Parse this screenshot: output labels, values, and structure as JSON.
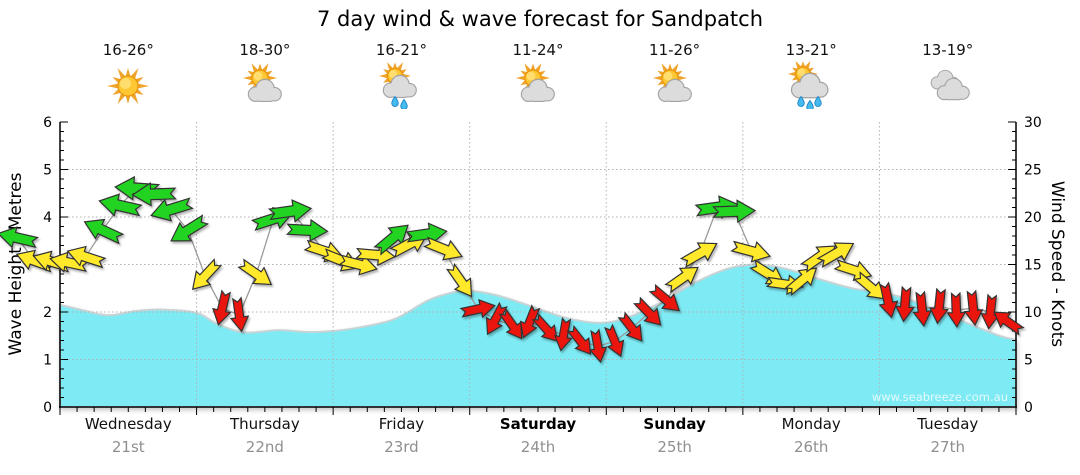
{
  "title": "7 day wind & wave forecast for Sandpatch",
  "watermark": "www.seabreeze.com.au",
  "days": [
    {
      "name": "Wednesday",
      "date": "21st",
      "temp": "16-26°",
      "icon": "sunny",
      "weekend": false
    },
    {
      "name": "Thursday",
      "date": "22nd",
      "temp": "18-30°",
      "icon": "partly-cloudy",
      "weekend": false
    },
    {
      "name": "Friday",
      "date": "23rd",
      "temp": "16-21°",
      "icon": "showers",
      "weekend": false
    },
    {
      "name": "Saturday",
      "date": "24th",
      "temp": "11-24°",
      "icon": "partly-cloudy",
      "weekend": true
    },
    {
      "name": "Sunday",
      "date": "25th",
      "temp": "11-26°",
      "icon": "partly-cloudy",
      "weekend": true
    },
    {
      "name": "Monday",
      "date": "26th",
      "temp": "13-21°",
      "icon": "rain",
      "weekend": false
    },
    {
      "name": "Tuesday",
      "date": "27th",
      "temp": "13-19°",
      "icon": "cloudy",
      "weekend": false
    }
  ],
  "colors": {
    "wave_fill": "#7deaf4",
    "wave_edge": "#c8d3d5",
    "arrow_green": "#22d320",
    "arrow_yellow": "#ffe92b",
    "arrow_red": "#ea1410",
    "arrow_outline": "#333333",
    "grid": "#b2b2b2",
    "axis": "#000000",
    "connector": "#9a9a9a",
    "date_text": "#8f8f8f"
  },
  "chart_data": {
    "type": "area",
    "title": "7 day wind & wave forecast for Sandpatch",
    "grid": true,
    "x_axis": {
      "days": 7,
      "points_per_day": 8
    },
    "y_left": {
      "label": "Wave Height - Metres",
      "min": 0,
      "max": 6,
      "ticks": [
        0,
        1,
        2,
        3,
        4,
        5,
        6
      ],
      "minor_step": 0.2
    },
    "y_right": {
      "label": "Wind Speed - Knots",
      "min": 0,
      "max": 30,
      "ticks": [
        0,
        5,
        10,
        15,
        20,
        25,
        30
      ],
      "minor_step": 1
    },
    "wave_height_m": {
      "x_days": [
        0,
        0.15,
        0.35,
        0.55,
        0.75,
        1.0,
        1.15,
        1.35,
        1.6,
        1.8,
        2.0,
        2.2,
        2.45,
        2.7,
        2.9,
        3.0,
        3.2,
        3.45,
        3.7,
        3.95,
        4.15,
        4.4,
        4.65,
        4.9,
        5.1,
        5.3,
        5.55,
        5.8,
        6.0,
        6.2,
        6.45,
        6.7,
        6.9,
        7.0
      ],
      "values": [
        2.15,
        2.05,
        1.93,
        2.02,
        2.05,
        1.98,
        1.75,
        1.57,
        1.62,
        1.58,
        1.6,
        1.68,
        1.85,
        2.25,
        2.43,
        2.45,
        2.35,
        2.12,
        1.88,
        1.77,
        1.88,
        2.2,
        2.62,
        2.92,
        3.0,
        2.92,
        2.7,
        2.5,
        2.42,
        2.28,
        2.0,
        1.7,
        1.48,
        1.42
      ]
    },
    "wind": {
      "start_day": -0.3125,
      "step_day": 0.125,
      "knots": [
        17.8,
        15.4,
        15.3,
        15.2,
        15.8,
        18.6,
        21.2,
        23.0,
        22.4,
        20.8,
        18.6,
        13.8,
        10.4,
        9.7,
        14.0,
        19.8,
        20.6,
        18.6,
        16.4,
        15.4,
        15.0,
        16.0,
        17.8,
        17.2,
        18.2,
        16.6,
        13.2,
        10.3,
        9.2,
        8.6,
        8.9,
        8.2,
        7.6,
        6.9,
        6.4,
        6.9,
        8.3,
        9.9,
        11.3,
        13.6,
        16.2,
        21.0,
        20.6,
        16.4,
        14.0,
        12.9,
        13.4,
        15.8,
        16.2,
        14.4,
        12.6,
        11.2,
        10.8,
        10.3,
        10.6,
        10.2,
        10.4,
        10.0,
        9.0
      ],
      "dir_deg": [
        193,
        200,
        197,
        192,
        198,
        205,
        193,
        184,
        178,
        163,
        148,
        133,
        103,
        82,
        35,
        342,
        352,
        3,
        18,
        22,
        14,
        5,
        320,
        332,
        352,
        22,
        55,
        348,
        118,
        55,
        112,
        48,
        100,
        52,
        80,
        68,
        52,
        46,
        40,
        325,
        330,
        352,
        358,
        15,
        32,
        8,
        320,
        325,
        330,
        18,
        40,
        78,
        95,
        84,
        96,
        88,
        84,
        96,
        215
      ],
      "color_rule": {
        "green_min_kn": 17.5,
        "yellow_min_kn": 12,
        "red_below_kn": 12
      }
    }
  }
}
